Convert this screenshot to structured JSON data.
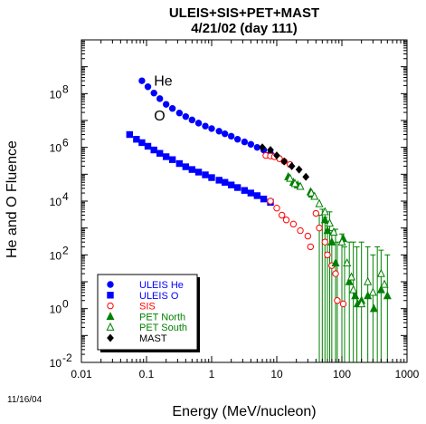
{
  "chart_data": {
    "type": "scatter",
    "title": "ULEIS+SIS+PET+MAST",
    "subtitle": "4/21/02 (day 111)",
    "xlabel": "Energy (MeV/nucleon)",
    "ylabel": "He and O Fluence",
    "x_scale": "log",
    "y_scale": "log",
    "xlim": [
      0.01,
      1000
    ],
    "ylim": [
      0.01,
      10000000000
    ],
    "x_ticks": [
      {
        "value": 0.01,
        "label": "0.01"
      },
      {
        "value": 0.1,
        "label": "0.1"
      },
      {
        "value": 1,
        "label": "1"
      },
      {
        "value": 10,
        "label": "10"
      },
      {
        "value": 100,
        "label": "100"
      },
      {
        "value": 1000,
        "label": "1000"
      }
    ],
    "y_ticks": [
      {
        "value": 0.01,
        "base": "10",
        "exp": "-2"
      },
      {
        "value": 1,
        "base": "10",
        "exp": "0"
      },
      {
        "value": 100,
        "base": "10",
        "exp": "2"
      },
      {
        "value": 10000,
        "base": "10",
        "exp": "4"
      },
      {
        "value": 1000000,
        "base": "10",
        "exp": "6"
      },
      {
        "value": 100000000,
        "base": "10",
        "exp": "8"
      }
    ],
    "annotations": [
      {
        "text": "He",
        "x": 0.13,
        "y": 200000000
      },
      {
        "text": "O",
        "x": 0.13,
        "y": 10000000
      }
    ],
    "date_stamp": "11/16/04",
    "legend": {
      "placement": "bottom-left"
    },
    "series": [
      {
        "name": "ULEIS He",
        "marker": "circle",
        "color": "#0000ff",
        "filled": true,
        "points": [
          [
            0.085,
            300000000
          ],
          [
            0.105,
            180000000
          ],
          [
            0.13,
            105000000
          ],
          [
            0.16,
            65000000
          ],
          [
            0.2,
            40000000
          ],
          [
            0.25,
            28000000
          ],
          [
            0.32,
            19000000
          ],
          [
            0.4,
            14000000
          ],
          [
            0.5,
            10500000
          ],
          [
            0.63,
            8000000
          ],
          [
            0.8,
            6200000
          ],
          [
            1.0,
            5000000
          ],
          [
            1.3,
            4000000
          ],
          [
            1.6,
            3200000
          ],
          [
            2.0,
            2600000
          ],
          [
            2.5,
            2000000
          ],
          [
            3.2,
            1600000
          ],
          [
            4.0,
            1300000
          ],
          [
            5.0,
            1000000
          ],
          [
            6.3,
            800000
          ],
          [
            8.0,
            600000
          ]
        ]
      },
      {
        "name": "ULEIS O",
        "marker": "square",
        "color": "#0000ff",
        "filled": true,
        "points": [
          [
            0.055,
            3000000
          ],
          [
            0.07,
            2000000
          ],
          [
            0.085,
            1500000
          ],
          [
            0.105,
            1100000
          ],
          [
            0.13,
            800000
          ],
          [
            0.16,
            600000
          ],
          [
            0.2,
            450000
          ],
          [
            0.25,
            350000
          ],
          [
            0.32,
            250000
          ],
          [
            0.4,
            190000
          ],
          [
            0.5,
            150000
          ],
          [
            0.63,
            120000
          ],
          [
            0.8,
            95000
          ],
          [
            1.0,
            75000
          ],
          [
            1.3,
            60000
          ],
          [
            1.6,
            50000
          ],
          [
            2.0,
            40000
          ],
          [
            2.5,
            32000
          ],
          [
            3.2,
            25000
          ],
          [
            4.0,
            20000
          ],
          [
            5.0,
            16000
          ],
          [
            6.3,
            12000
          ],
          [
            8.0,
            9000
          ]
        ]
      },
      {
        "name": "SIS",
        "marker": "circle",
        "color": "#ff0000",
        "filled": false,
        "points": [
          [
            6.8,
            500000
          ],
          [
            8.0,
            480000
          ],
          [
            9.2,
            450000
          ],
          [
            11,
            380000
          ],
          [
            13,
            300000
          ],
          [
            16,
            230000
          ],
          [
            8.0,
            10000
          ],
          [
            10,
            5500
          ],
          [
            12,
            3000
          ],
          [
            14,
            2000
          ],
          [
            18,
            1400
          ],
          [
            23,
            800
          ],
          [
            30,
            500
          ],
          [
            33,
            200
          ],
          [
            40,
            3500
          ],
          [
            45,
            1000
          ],
          [
            55,
            300
          ],
          [
            60,
            100
          ],
          [
            70,
            40
          ],
          [
            80,
            20
          ],
          [
            85,
            2
          ],
          [
            105,
            1.5
          ]
        ]
      },
      {
        "name": "PET North",
        "marker": "triangle",
        "color": "#008000",
        "filled": true,
        "points": [
          [
            15,
            80000
          ],
          [
            18,
            50000
          ],
          [
            21,
            40000
          ],
          [
            33,
            22000
          ],
          [
            35,
            18000
          ],
          [
            55,
            2000
          ],
          [
            60,
            800
          ],
          [
            70,
            300
          ],
          [
            80,
            50
          ],
          [
            105,
            400
          ],
          [
            130,
            10
          ],
          [
            160,
            3
          ],
          [
            175,
            1.5
          ],
          [
            200,
            2
          ],
          [
            250,
            3
          ],
          [
            310,
            1
          ],
          [
            400,
            5
          ],
          [
            500,
            3
          ]
        ]
      },
      {
        "name": "PET South",
        "marker": "triangle",
        "color": "#008000",
        "filled": false,
        "points": [
          [
            16,
            70000
          ],
          [
            19,
            45000
          ],
          [
            23,
            35000
          ],
          [
            34,
            20000
          ],
          [
            38,
            15000
          ],
          [
            45,
            8000
          ],
          [
            55,
            4000
          ],
          [
            65,
            1500
          ],
          [
            75,
            700
          ],
          [
            100,
            300
          ],
          [
            120,
            50
          ],
          [
            140,
            15
          ],
          [
            150,
            5
          ],
          [
            200,
            1.5
          ],
          [
            250,
            10
          ],
          [
            300,
            4
          ],
          [
            400,
            20
          ],
          [
            450,
            8
          ]
        ]
      },
      {
        "name": "MAST",
        "marker": "diamond",
        "color": "#000000",
        "filled": true,
        "points": [
          [
            6.0,
            1000000
          ],
          [
            8.0,
            800000
          ],
          [
            10,
            500000
          ],
          [
            13,
            300000
          ],
          [
            17,
            200000
          ],
          [
            22,
            150000
          ],
          [
            28,
            80000
          ]
        ]
      }
    ],
    "error_bars": {
      "color": "#008000",
      "items": [
        [
          45,
          0.01,
          3000
        ],
        [
          50,
          0.01,
          5000
        ],
        [
          55,
          0.01,
          2500
        ],
        [
          60,
          0.01,
          1500
        ],
        [
          65,
          0.01,
          4000
        ],
        [
          70,
          0.01,
          800
        ],
        [
          80,
          0.01,
          900
        ],
        [
          85,
          0.01,
          300
        ],
        [
          100,
          0.01,
          600
        ],
        [
          110,
          0.01,
          200
        ],
        [
          130,
          0.01,
          300
        ],
        [
          150,
          0.01,
          300
        ],
        [
          170,
          0.01,
          200
        ],
        [
          200,
          0.01,
          300
        ],
        [
          250,
          0.01,
          200
        ],
        [
          300,
          0.01,
          100
        ],
        [
          350,
          0.01,
          200
        ],
        [
          400,
          0.01,
          150
        ],
        [
          500,
          0.01,
          100
        ]
      ]
    }
  }
}
